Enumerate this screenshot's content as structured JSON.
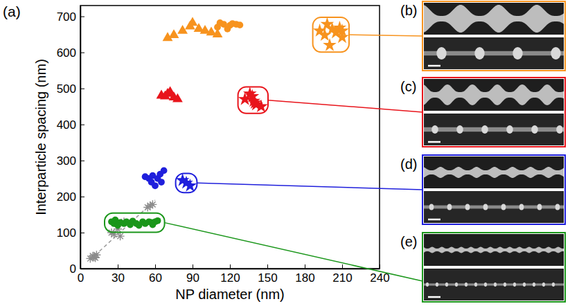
{
  "chart_data": {
    "type": "scatter",
    "title": "(a)",
    "x_label": "NP diameter (nm)",
    "y_label": "Interparticle spacing (nm)",
    "xlim": [
      0,
      240
    ],
    "ylim": [
      0,
      730
    ],
    "xticks": [
      0,
      30,
      60,
      90,
      120,
      150,
      180,
      210,
      240
    ],
    "yticks": [
      0,
      100,
      200,
      300,
      400,
      500,
      600,
      700
    ],
    "grid": false,
    "series": [
      {
        "type": "line",
        "color": "#9a9a9a",
        "line_style": "dashed",
        "x": [
          8,
          60
        ],
        "values": [
          25,
          190
        ]
      },
      {
        "type": "scatter",
        "color": "#8c8c8c",
        "marker": "asterisk",
        "x": [
          8,
          10,
          11,
          12,
          13,
          25,
          27,
          30,
          32,
          35,
          54,
          56,
          58
        ],
        "values": [
          28,
          35,
          32,
          30,
          38,
          100,
          95,
          110,
          90,
          130,
          170,
          175,
          178
        ]
      },
      {
        "type": "scatter",
        "color": "#1a961a",
        "marker": "circle",
        "x": [
          25,
          27,
          28,
          30,
          32,
          35,
          37,
          40,
          42,
          45,
          47,
          50,
          52,
          55,
          57,
          58,
          60,
          62
        ],
        "values": [
          130,
          125,
          135,
          120,
          128,
          125,
          130,
          122,
          132,
          125,
          120,
          130,
          125,
          130,
          128,
          122,
          130,
          133
        ]
      },
      {
        "type": "scatter",
        "color": "#1f1fdc",
        "marker": "circle",
        "x": [
          52,
          55,
          57,
          58,
          60,
          62,
          64,
          65,
          67
        ],
        "values": [
          255,
          250,
          240,
          258,
          230,
          250,
          262,
          240,
          272
        ]
      },
      {
        "type": "scatter",
        "color": "#1f1fdc",
        "marker": "star",
        "x": [
          82,
          85,
          88
        ],
        "values": [
          245,
          238,
          230
        ]
      },
      {
        "type": "scatter",
        "color": "#e8141b",
        "marker": "triangle",
        "x": [
          65,
          68,
          70,
          72,
          75,
          78
        ],
        "values": [
          480,
          478,
          485,
          490,
          475,
          470
        ]
      },
      {
        "type": "scatter",
        "color": "#e8141b",
        "marker": "star",
        "x": [
          132,
          136,
          138,
          139,
          140,
          141,
          145
        ],
        "values": [
          470,
          485,
          478,
          465,
          460,
          455,
          450
        ]
      },
      {
        "type": "scatter",
        "color": "#f7931e",
        "marker": "triangle",
        "x": [
          70,
          75,
          82,
          88,
          90,
          95,
          100,
          105,
          110
        ],
        "values": [
          640,
          648,
          660,
          672,
          682,
          665,
          660,
          655,
          650
        ]
      },
      {
        "type": "scatter",
        "color": "#f7931e",
        "marker": "circle",
        "x": [
          110,
          112,
          115,
          118,
          120,
          122,
          125,
          128
        ],
        "values": [
          670,
          682,
          678,
          665,
          675,
          680,
          678,
          676
        ]
      },
      {
        "type": "scatter",
        "color": "#f7931e",
        "marker": "star",
        "x": [
          192,
          196,
          198,
          200,
          202,
          205,
          208,
          210,
          210
        ],
        "values": [
          660,
          648,
          678,
          620,
          665,
          655,
          668,
          660,
          642
        ]
      }
    ],
    "annotations": [
      {
        "text": "(b)",
        "color": "#f7931e"
      },
      {
        "text": "(c)",
        "color": "#e8141b"
      },
      {
        "text": "(d)",
        "color": "#1f1fdc"
      },
      {
        "text": "(e)",
        "color": "#1a961a"
      }
    ]
  }
}
